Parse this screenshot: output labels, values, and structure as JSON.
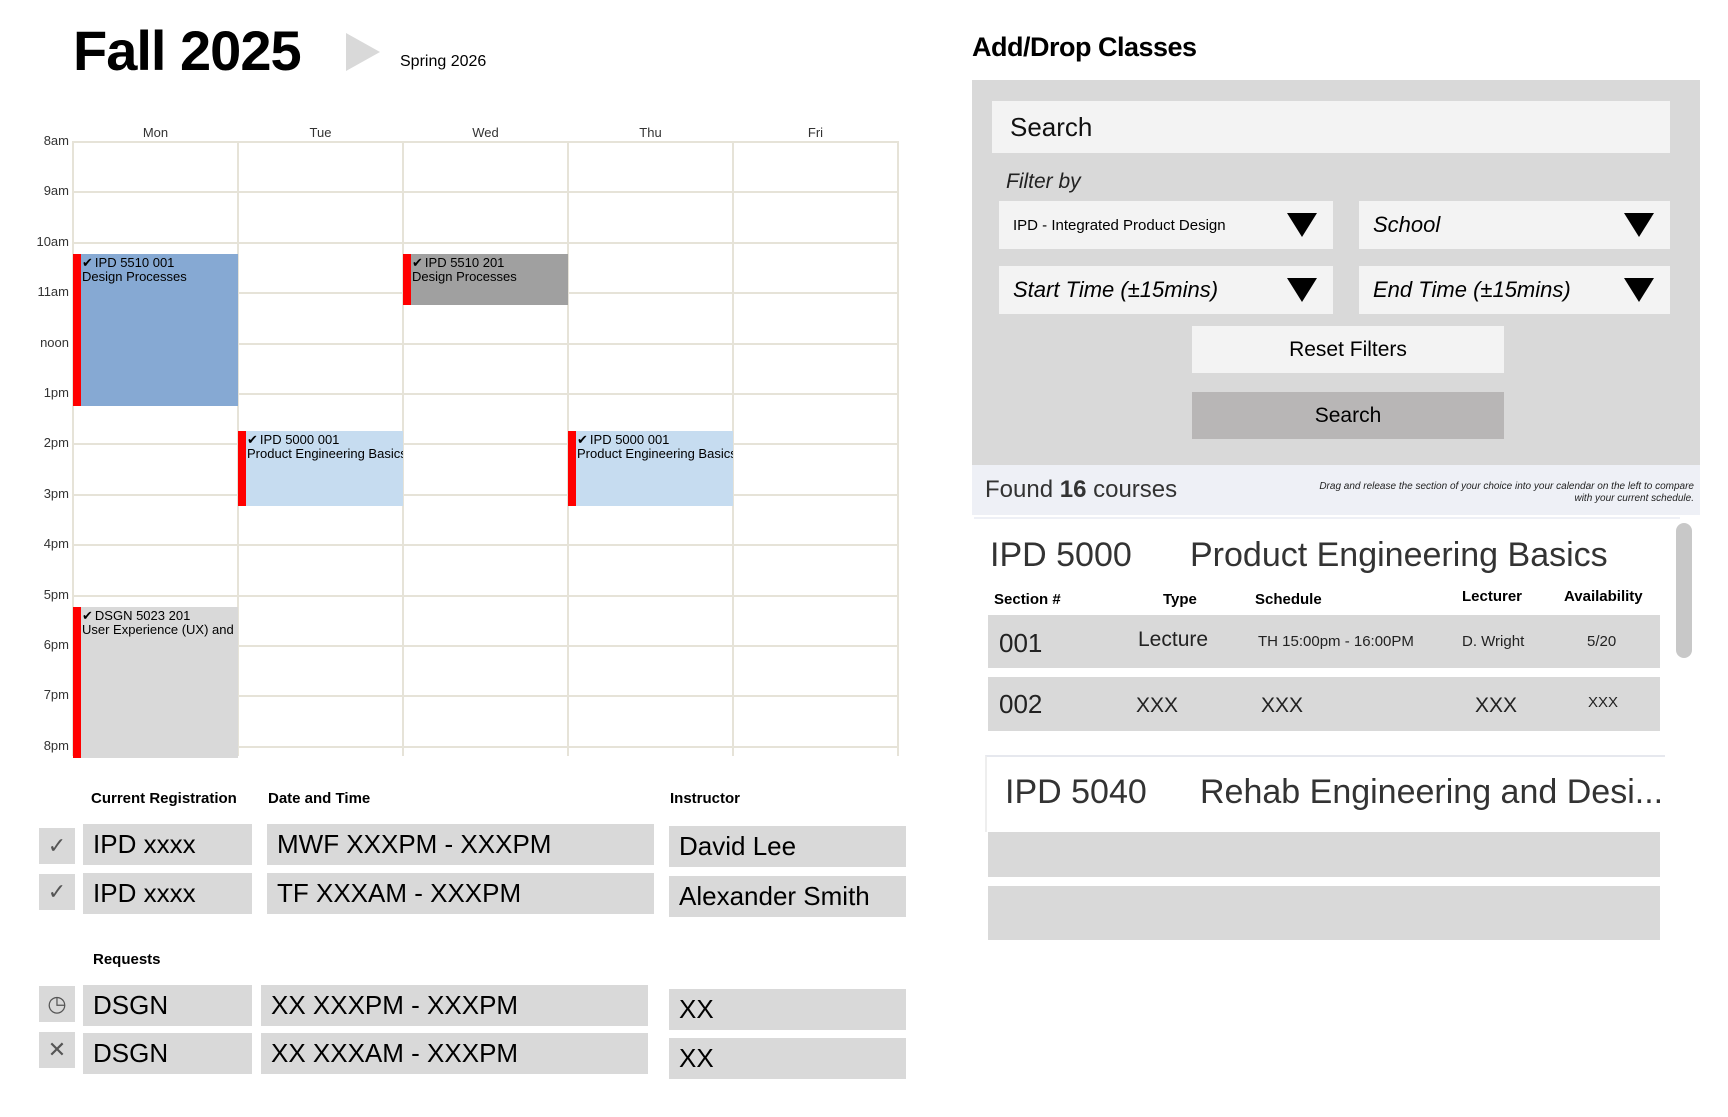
{
  "header": {
    "current_term": "Fall 2025",
    "next_term": "Spring 2026"
  },
  "calendar": {
    "days": [
      "Mon",
      "Tue",
      "Wed",
      "Thu",
      "Fri"
    ],
    "hours": [
      "8am",
      "9am",
      "10am",
      "11am",
      "noon",
      "1pm",
      "2pm",
      "3pm",
      "4pm",
      "5pm",
      "6pm",
      "7pm",
      "8pm"
    ],
    "events": [
      {
        "code": "IPD 5510 001",
        "title": "Design Processes",
        "day": 0,
        "start": 10.25,
        "end": 13.25,
        "color": "#86a9d3"
      },
      {
        "code": "IPD 5510 201",
        "title": "Design Processes",
        "day": 2,
        "start": 10.25,
        "end": 11.25,
        "color": "#a0a0a0"
      },
      {
        "code": "IPD 5000 001",
        "title": "Product Engineering Basics",
        "day": 1,
        "start": 13.75,
        "end": 15.25,
        "color": "#c6dcf0"
      },
      {
        "code": "IPD 5000 001",
        "title": "Product Engineering Basics",
        "day": 3,
        "start": 13.75,
        "end": 15.25,
        "color": "#c6dcf0"
      },
      {
        "code": "DSGN 5023 201",
        "title": "User Experience (UX) and",
        "day": 0,
        "start": 17.25,
        "end": 20.25,
        "color": "#d9d9d9"
      }
    ]
  },
  "registration": {
    "headers": {
      "course": "Current Registration",
      "datetime": "Date and Time",
      "instructor": "Instructor"
    },
    "rows": [
      {
        "status_icon": "checkmark-icon",
        "status": "✓",
        "course": "IPD xxxx",
        "datetime": "MWF XXXPM - XXXPM",
        "instructor": "David Lee"
      },
      {
        "status_icon": "checkmark-icon",
        "status": "✓",
        "course": "IPD xxxx",
        "datetime": "TF XXXAM - XXXPM",
        "instructor": "Alexander Smith"
      }
    ]
  },
  "requests": {
    "header": "Requests",
    "rows": [
      {
        "status_icon": "pending-clock-icon",
        "status": "◷",
        "course": "DSGN",
        "datetime": "XX XXXPM - XXXPM",
        "instructor": "XX"
      },
      {
        "status_icon": "declined-x-icon",
        "status": "✕",
        "course": "DSGN",
        "datetime": "XX XXXAM - XXXPM",
        "instructor": "XX"
      }
    ]
  },
  "add_drop": {
    "title": "Add/Drop Classes",
    "search_placeholder": "Search",
    "filter_label": "Filter by",
    "filters": {
      "program": "IPD - Integrated Product Design",
      "school": "School",
      "start_time": "Start Time (±15mins)",
      "end_time": "End Time (±15mins)"
    },
    "reset_label": "Reset Filters",
    "search_label": "Search",
    "results_prefix": "Found ",
    "results_count": "16",
    "results_suffix": " courses",
    "drag_hint": "Drag and release the section of your choice into your calendar on the left to compare with your current schedule."
  },
  "courses": [
    {
      "code": "IPD 5000",
      "title": "Product Engineering Basics",
      "columns": {
        "section": "Section #",
        "type": "Type",
        "schedule": "Schedule",
        "lecturer": "Lecturer",
        "availability": "Availability"
      },
      "sections": [
        {
          "section": "001",
          "type": "Lecture",
          "schedule": "TH 15:00pm - 16:00PM",
          "lecturer": "D. Wright",
          "availability": "5/20"
        },
        {
          "section": "002",
          "type": "XXX",
          "schedule": "XXX",
          "lecturer": "XXX",
          "availability": "XXX"
        }
      ]
    },
    {
      "code": "IPD 5040",
      "title": "Rehab Engineering and Desi..."
    }
  ],
  "colors": {
    "accent_red": "#ff0000",
    "panel_gray": "#d9d9d9",
    "input_bg": "#f3f3f3",
    "search_button": "#b8b6b6"
  }
}
